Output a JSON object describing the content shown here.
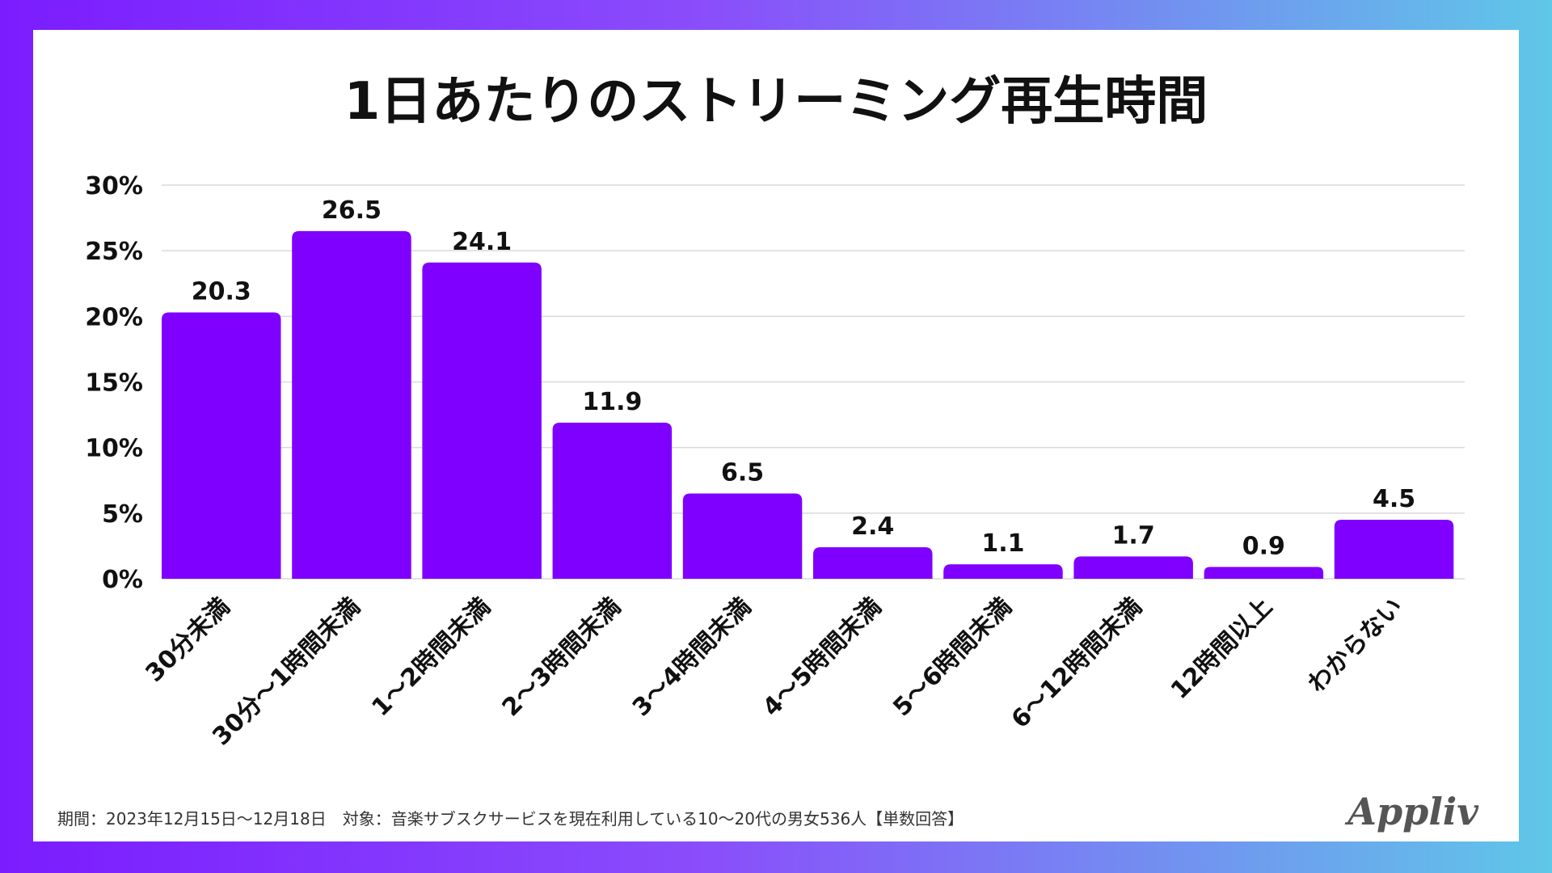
{
  "chart_data": {
    "type": "bar",
    "title": "1日あたりのストリーミング再生時間",
    "categories": [
      "30分未満",
      "30分～1時間未満",
      "1～2時間未満",
      "2～3時間未満",
      "3～4時間未満",
      "4～5時間未満",
      "5～6時間未満",
      "6～12時間未満",
      "12時間以上",
      "わからない"
    ],
    "values": [
      20.3,
      26.5,
      24.1,
      11.9,
      6.5,
      2.4,
      1.1,
      1.7,
      0.9,
      4.5
    ],
    "value_labels": [
      "20.3",
      "26.5",
      "24.1",
      "11.9",
      "6.5",
      "2.4",
      "1.1",
      "1.7",
      "0.9",
      "4.5"
    ],
    "yticks": [
      "0%",
      "5%",
      "10%",
      "15%",
      "20%",
      "25%",
      "30%"
    ],
    "ylim": [
      0,
      30
    ],
    "grid": true,
    "bar_color": "#8000ff"
  },
  "footnote": "期間：2023年12月15日～12月18日　対象：音楽サブスクサービスを現在利用している10～20代の男女536人【単数回答】",
  "logo_text": "Appliv"
}
